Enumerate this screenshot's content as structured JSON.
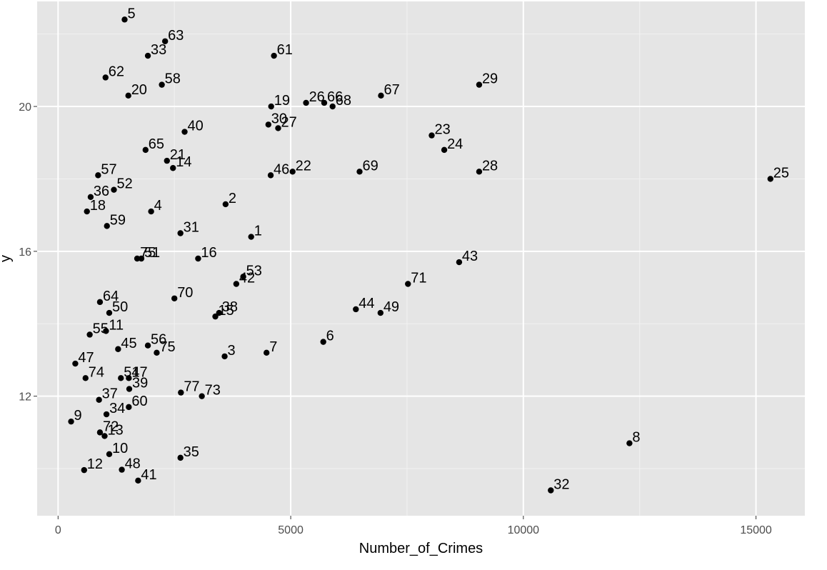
{
  "chart_data": {
    "type": "scatter",
    "title": "",
    "xlabel": "Number_of_Crimes",
    "ylabel": "y",
    "xlim": [
      -450,
      16050
    ],
    "ylim": [
      8.7,
      22.9
    ],
    "x_ticks": [
      0,
      5000,
      10000,
      15000
    ],
    "x_tick_labels": [
      "0",
      "5000",
      "10000",
      "15000"
    ],
    "y_ticks": [
      12,
      16,
      20
    ],
    "y_tick_labels": [
      "12",
      "16",
      "20"
    ],
    "grid": true,
    "background": "#e5e5e5",
    "point_color": "#000000",
    "points": [
      {
        "label": "1",
        "x": 4150,
        "y": 16.4
      },
      {
        "label": "2",
        "x": 3600,
        "y": 17.3
      },
      {
        "label": "3",
        "x": 3580,
        "y": 13.1
      },
      {
        "label": "4",
        "x": 2000,
        "y": 17.1
      },
      {
        "label": "5",
        "x": 1430,
        "y": 22.4
      },
      {
        "label": "6",
        "x": 5700,
        "y": 13.5
      },
      {
        "label": "7",
        "x": 4480,
        "y": 13.2
      },
      {
        "label": "8",
        "x": 12280,
        "y": 10.7
      },
      {
        "label": "9",
        "x": 280,
        "y": 11.3
      },
      {
        "label": "10",
        "x": 1100,
        "y": 10.4
      },
      {
        "label": "11",
        "x": 1030,
        "y": 13.8
      },
      {
        "label": "12",
        "x": 560,
        "y": 9.96
      },
      {
        "label": "13",
        "x": 1000,
        "y": 10.9
      },
      {
        "label": "14",
        "x": 2470,
        "y": 18.3
      },
      {
        "label": "15",
        "x": 3380,
        "y": 14.2
      },
      {
        "label": "16",
        "x": 3010,
        "y": 15.8
      },
      {
        "label": "18",
        "x": 620,
        "y": 17.1
      },
      {
        "label": "19",
        "x": 4580,
        "y": 20.0
      },
      {
        "label": "20",
        "x": 1510,
        "y": 20.3
      },
      {
        "label": "21",
        "x": 2340,
        "y": 18.5
      },
      {
        "label": "22",
        "x": 5040,
        "y": 18.2
      },
      {
        "label": "23",
        "x": 8030,
        "y": 19.2
      },
      {
        "label": "24",
        "x": 8300,
        "y": 18.8
      },
      {
        "label": "25",
        "x": 15310,
        "y": 18.0
      },
      {
        "label": "26",
        "x": 5330,
        "y": 20.1
      },
      {
        "label": "27",
        "x": 4730,
        "y": 19.4
      },
      {
        "label": "28",
        "x": 9050,
        "y": 18.2
      },
      {
        "label": "29",
        "x": 9050,
        "y": 20.6
      },
      {
        "label": "30",
        "x": 4520,
        "y": 19.5
      },
      {
        "label": "31",
        "x": 2630,
        "y": 16.5
      },
      {
        "label": "32",
        "x": 10590,
        "y": 9.4
      },
      {
        "label": "33",
        "x": 1930,
        "y": 21.4
      },
      {
        "label": "34",
        "x": 1040,
        "y": 11.5
      },
      {
        "label": "35",
        "x": 2630,
        "y": 10.3
      },
      {
        "label": "36",
        "x": 700,
        "y": 17.5
      },
      {
        "label": "37",
        "x": 880,
        "y": 11.9
      },
      {
        "label": "38",
        "x": 3460,
        "y": 14.3
      },
      {
        "label": "39",
        "x": 1530,
        "y": 12.2
      },
      {
        "label": "40",
        "x": 2720,
        "y": 19.3
      },
      {
        "label": "41",
        "x": 1720,
        "y": 9.67
      },
      {
        "label": "42",
        "x": 3830,
        "y": 15.1
      },
      {
        "label": "43",
        "x": 8620,
        "y": 15.7
      },
      {
        "label": "44",
        "x": 6400,
        "y": 14.4
      },
      {
        "label": "45",
        "x": 1290,
        "y": 13.3
      },
      {
        "label": "46",
        "x": 4570,
        "y": 18.1
      },
      {
        "label": "47",
        "x": 370,
        "y": 12.9
      },
      {
        "label": "47",
        "x": 1520,
        "y": 12.5
      },
      {
        "label": "48",
        "x": 1370,
        "y": 9.97
      },
      {
        "label": "49",
        "x": 6930,
        "y": 14.3
      },
      {
        "label": "50",
        "x": 1100,
        "y": 14.3
      },
      {
        "label": "51",
        "x": 1350,
        "y": 12.5
      },
      {
        "label": "51",
        "x": 1790,
        "y": 15.8
      },
      {
        "label": "52",
        "x": 1200,
        "y": 17.7
      },
      {
        "label": "53",
        "x": 3980,
        "y": 15.3
      },
      {
        "label": "55",
        "x": 680,
        "y": 13.7
      },
      {
        "label": "56",
        "x": 1930,
        "y": 13.4
      },
      {
        "label": "57",
        "x": 860,
        "y": 18.1
      },
      {
        "label": "58",
        "x": 2230,
        "y": 20.6
      },
      {
        "label": "59",
        "x": 1050,
        "y": 16.7
      },
      {
        "label": "60",
        "x": 1520,
        "y": 11.7
      },
      {
        "label": "61",
        "x": 4640,
        "y": 21.4
      },
      {
        "label": "62",
        "x": 1020,
        "y": 20.8
      },
      {
        "label": "63",
        "x": 2300,
        "y": 21.8
      },
      {
        "label": "64",
        "x": 900,
        "y": 14.6
      },
      {
        "label": "65",
        "x": 1880,
        "y": 18.8
      },
      {
        "label": "66",
        "x": 5720,
        "y": 20.1
      },
      {
        "label": "67",
        "x": 6940,
        "y": 20.3
      },
      {
        "label": "68",
        "x": 5900,
        "y": 20.0
      },
      {
        "label": "69",
        "x": 6480,
        "y": 18.2
      },
      {
        "label": "70",
        "x": 2500,
        "y": 14.7
      },
      {
        "label": "71",
        "x": 7520,
        "y": 15.1
      },
      {
        "label": "72",
        "x": 900,
        "y": 11.0
      },
      {
        "label": "73",
        "x": 3090,
        "y": 12.0
      },
      {
        "label": "74",
        "x": 590,
        "y": 12.5
      },
      {
        "label": "75",
        "x": 1700,
        "y": 15.8
      },
      {
        "label": "75",
        "x": 2120,
        "y": 13.2
      },
      {
        "label": "77",
        "x": 2640,
        "y": 12.1
      }
    ]
  }
}
